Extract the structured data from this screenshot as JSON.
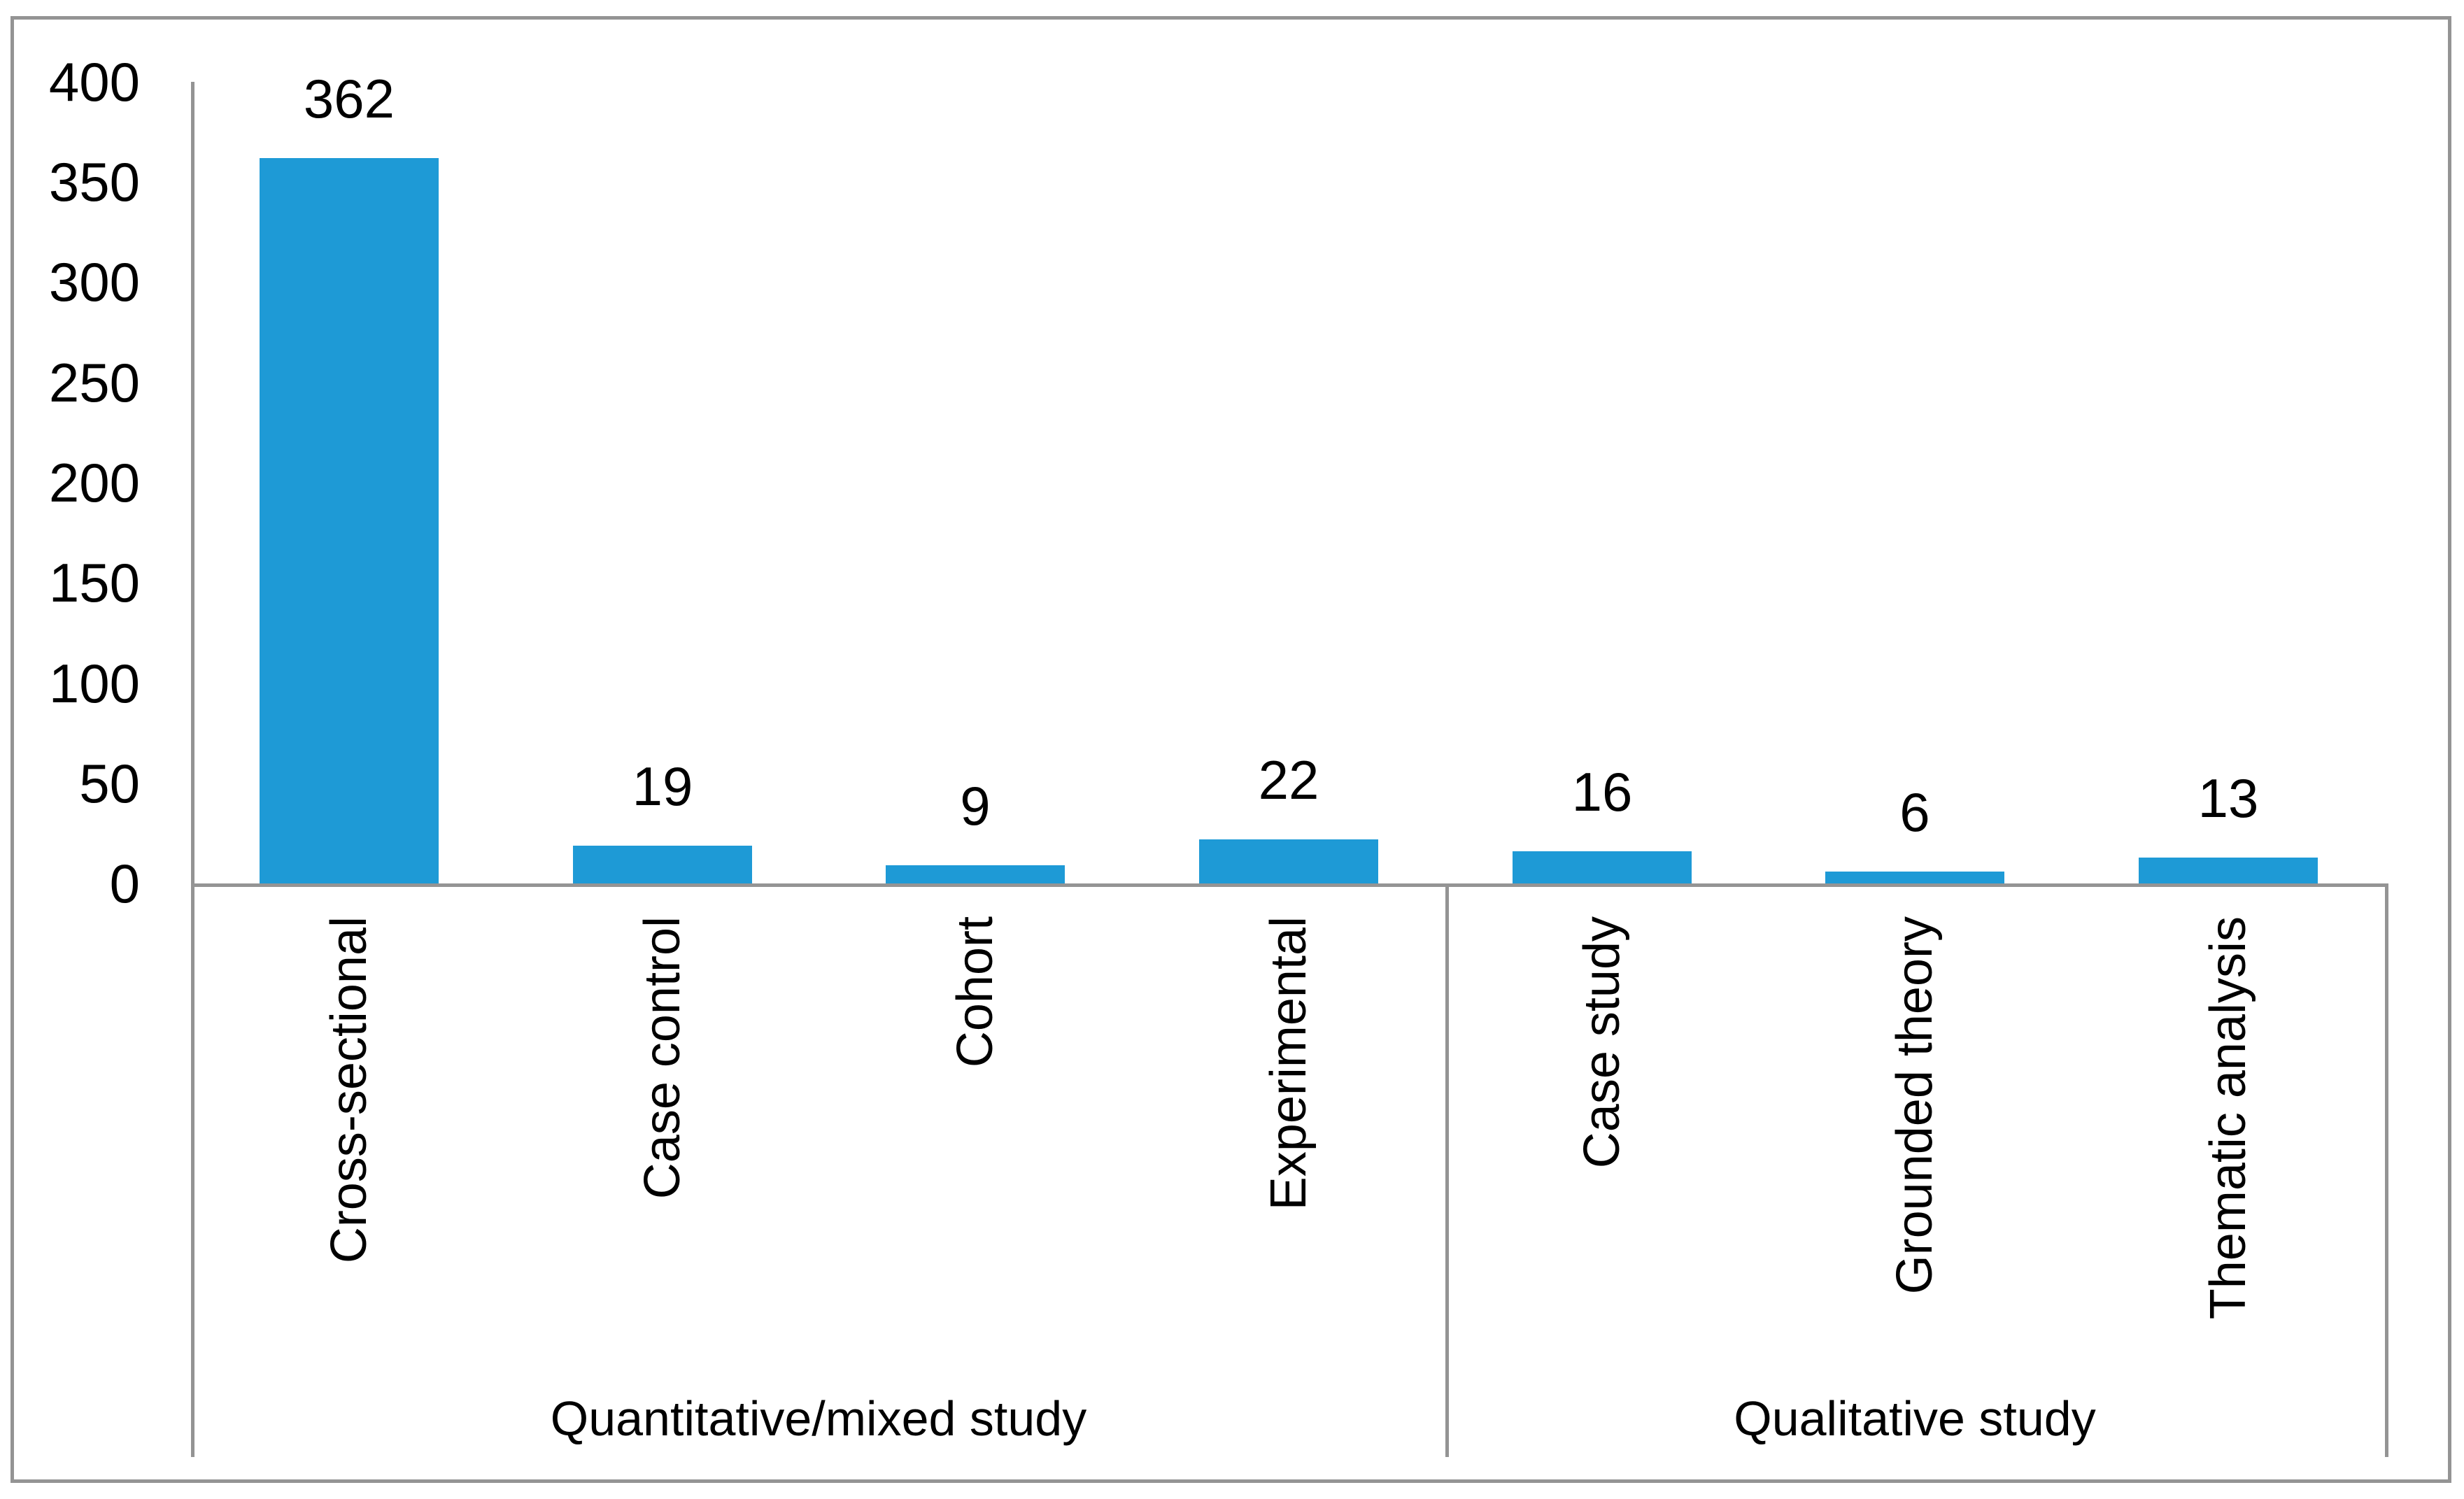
{
  "chart_data": {
    "type": "bar",
    "title": "",
    "xlabel": "",
    "ylabel": "",
    "categories": [
      "Cross-sectional",
      "Case control",
      "Cohort",
      "Experimental",
      "Case study",
      "Grounded theory",
      "Thematic analysis"
    ],
    "values": [
      362,
      19,
      9,
      22,
      16,
      6,
      13
    ],
    "groups": [
      {
        "label": "Quantitative/mixed study",
        "span": 4
      },
      {
        "label": "Qualitative study",
        "span": 3
      }
    ],
    "y_ticks": [
      400,
      350,
      300,
      250,
      200,
      150,
      100,
      50,
      0
    ],
    "ylim": [
      0,
      400
    ],
    "grid": false,
    "legend": false,
    "data_labels_shown": true,
    "category_label_rotation_deg": -90,
    "bar_color": "#1E9AD6",
    "axis_line_color": "#949494",
    "figure_border_color": "#949494",
    "text_color": "#000000",
    "background_color": "#FFFFFF"
  }
}
